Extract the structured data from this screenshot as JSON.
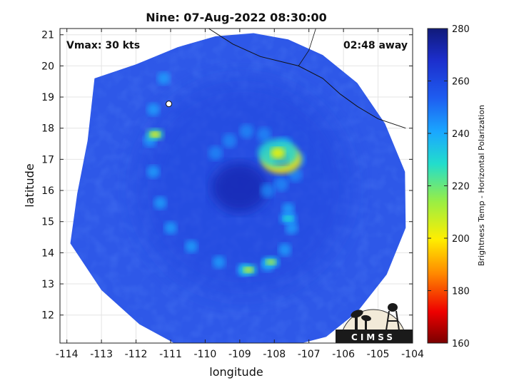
{
  "chart_data": {
    "type": "heatmap",
    "title": "Nine: 07-Aug-2022 08:30:00",
    "xlabel": "longitude",
    "ylabel": "latitude",
    "xlim": [
      -114.2,
      -104
    ],
    "ylim": [
      11.1,
      21.2
    ],
    "x_ticks": [
      -114,
      -113,
      -112,
      -111,
      -110,
      -109,
      -108,
      -107,
      -106,
      -105,
      -104
    ],
    "y_ticks": [
      12,
      13,
      14,
      15,
      16,
      17,
      18,
      19,
      20,
      21
    ],
    "annotations": {
      "vmax": "Vmax: 30 kts",
      "away": "02:48 away"
    },
    "colorbar": {
      "label": "Brightness Temp - Horizontal Polarization",
      "range": [
        160,
        280
      ],
      "ticks": [
        160,
        180,
        200,
        220,
        240,
        260,
        280
      ]
    },
    "storm_center": {
      "lon": -108.9,
      "lat": 16.1
    },
    "features": [
      {
        "name": "core-convection",
        "lon": -107.8,
        "lat": 17.0,
        "temp": 175
      },
      {
        "name": "core-yellow",
        "lon": -107.9,
        "lat": 17.2,
        "temp": 205
      },
      {
        "name": "northwest-band-cell",
        "lon": -111.45,
        "lat": 17.8,
        "temp": 200
      },
      {
        "name": "south-band-cell-1",
        "lon": -108.75,
        "lat": 13.45,
        "temp": 205
      },
      {
        "name": "south-band-cell-2",
        "lon": -108.1,
        "lat": 13.7,
        "temp": 210
      },
      {
        "name": "east-band-cell",
        "lon": -107.6,
        "lat": 15.1,
        "temp": 228
      }
    ],
    "logo": "CIMSS",
    "colors": {
      "swath_base": "#2e58e8",
      "coast": "#111111"
    }
  }
}
